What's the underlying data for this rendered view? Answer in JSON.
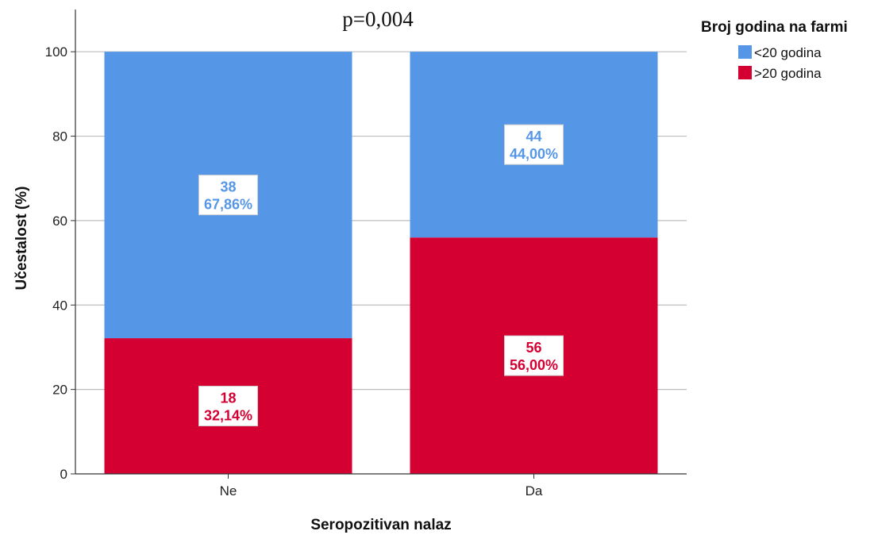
{
  "chart_data": {
    "type": "bar",
    "stacked": true,
    "annotation": "p=0,004",
    "xlabel": "Seropozitivan nalaz",
    "ylabel": "Učestalost (%)",
    "ylim": [
      0,
      110
    ],
    "yticks": [
      0,
      20,
      40,
      60,
      80,
      100
    ],
    "ytick_labels": [
      "0",
      "20",
      "40",
      "60",
      "80",
      "100"
    ],
    "grid": true,
    "categories": [
      "Ne",
      "Da"
    ],
    "legend": {
      "title": "Broj godina na farmi",
      "placement": "top-right"
    },
    "series": [
      {
        "name": ">20 godina",
        "color": "#D50032",
        "values": [
          32.14,
          56.0
        ],
        "counts": [
          "18",
          "56"
        ],
        "percent_labels": [
          "32,14%",
          "56,00%"
        ]
      },
      {
        "name": "<20 godina",
        "color": "#5596E6",
        "values": [
          67.86,
          44.0
        ],
        "counts": [
          "38",
          "44"
        ],
        "percent_labels": [
          "67,86%",
          "44,00%"
        ]
      }
    ]
  }
}
